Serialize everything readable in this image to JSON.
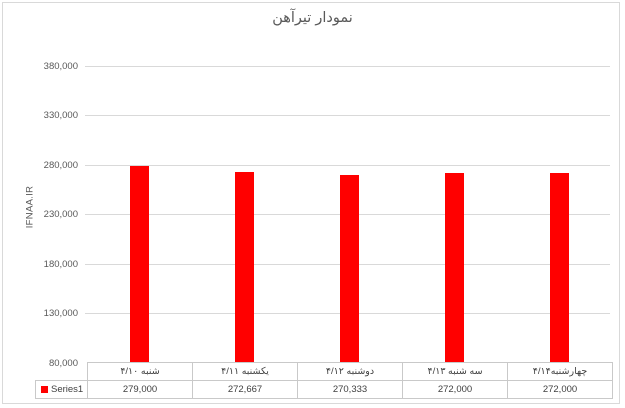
{
  "chart_data": {
    "type": "bar",
    "title": "نمودار تیرآهن",
    "ylabel": "IFNAA.IR",
    "xlabel": "",
    "categories": [
      "شنبه ۴/۱۰",
      "یکشنبه ۴/۱۱",
      "دوشنبه ۴/۱۲",
      "سه شنبه ۴/۱۳",
      "چهارشنبه۴/۱۴"
    ],
    "series": [
      {
        "name": "Series1",
        "color": "#ff0000",
        "values": [
          279000,
          272667,
          270333,
          272000,
          272000
        ]
      }
    ],
    "values_formatted": [
      "279,000",
      "272,667",
      "270,333",
      "272,000",
      "272,000"
    ],
    "ylim": [
      80000,
      380000
    ],
    "ytick_values": [
      380000,
      330000,
      280000,
      230000,
      180000,
      130000,
      80000
    ],
    "ytick_labels": [
      "380,000",
      "330,000",
      "280,000",
      "230,000",
      "180,000",
      "130,000",
      "80,000"
    ],
    "grid": true,
    "gridline_color": "#d9d9d9",
    "legend_position": "data-table-bottom-left",
    "data_table_shown": true
  },
  "legend": {
    "label": "Series1",
    "swatch_color": "#ff0000"
  },
  "colors": {
    "background": "#ffffff",
    "chart_border": "#d9d9d9",
    "table_border": "#c9c9c9",
    "axis_text": "#595959",
    "table_text": "#404040"
  }
}
